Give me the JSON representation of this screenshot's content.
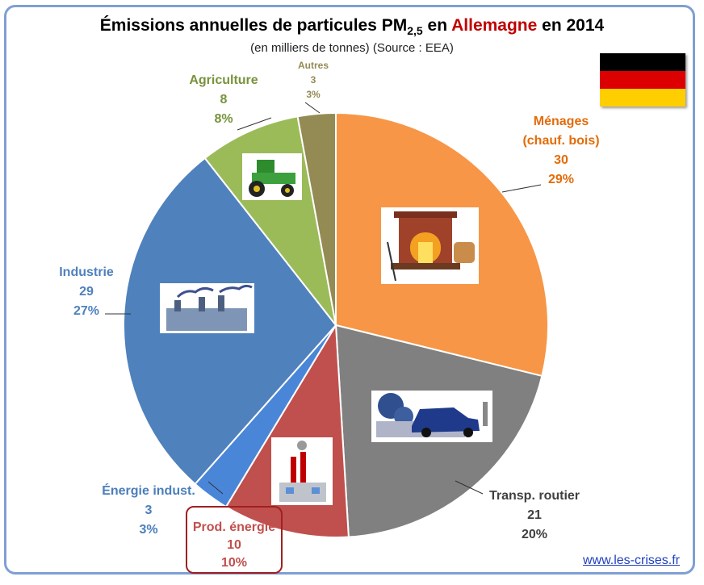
{
  "title": {
    "prefix": "Émissions annuelles de particules PM",
    "sub": "2,5",
    "mid": " en ",
    "country": "Allemagne",
    "suffix": " en 2014"
  },
  "subtitle": "(en milliers de tonnes) (Source : EEA)",
  "credit": "www.les-crises.fr",
  "chart_data": {
    "type": "pie",
    "start_angle_deg": 0,
    "direction": "clockwise",
    "slices": [
      {
        "name": "Ménages (chauf. bois)",
        "label_lines": [
          "Ménages",
          "(chauf. bois)"
        ],
        "value": 30,
        "percent": "29%",
        "color": "#f79646",
        "label_color": "#e36c09"
      },
      {
        "name": "Transp. routier",
        "label_lines": [
          "Transp. routier"
        ],
        "value": 21,
        "percent": "20%",
        "color": "#808080",
        "label_color": "#404040"
      },
      {
        "name": "Prod. énergie",
        "label_lines": [
          "Prod. énergie"
        ],
        "value": 10,
        "percent": "10%",
        "color": "#c0504d",
        "label_color": "#c0504d"
      },
      {
        "name": "Énergie indust.",
        "label_lines": [
          "Énergie indust."
        ],
        "value": 3,
        "percent": "3%",
        "color": "#4a86d8",
        "label_color": "#4a7ebb"
      },
      {
        "name": "Industrie",
        "label_lines": [
          "Industrie"
        ],
        "value": 29,
        "percent": "27%",
        "color": "#4f81bd",
        "label_color": "#4f81bd"
      },
      {
        "name": "Agriculture",
        "label_lines": [
          "Agriculture"
        ],
        "value": 8,
        "percent": "8%",
        "color": "#9bbb59",
        "label_color": "#77933c"
      },
      {
        "name": "Autres",
        "label_lines": [
          "Autres"
        ],
        "value": 3,
        "percent": "3%",
        "color": "#948a54",
        "label_color": "#948a54"
      }
    ]
  }
}
